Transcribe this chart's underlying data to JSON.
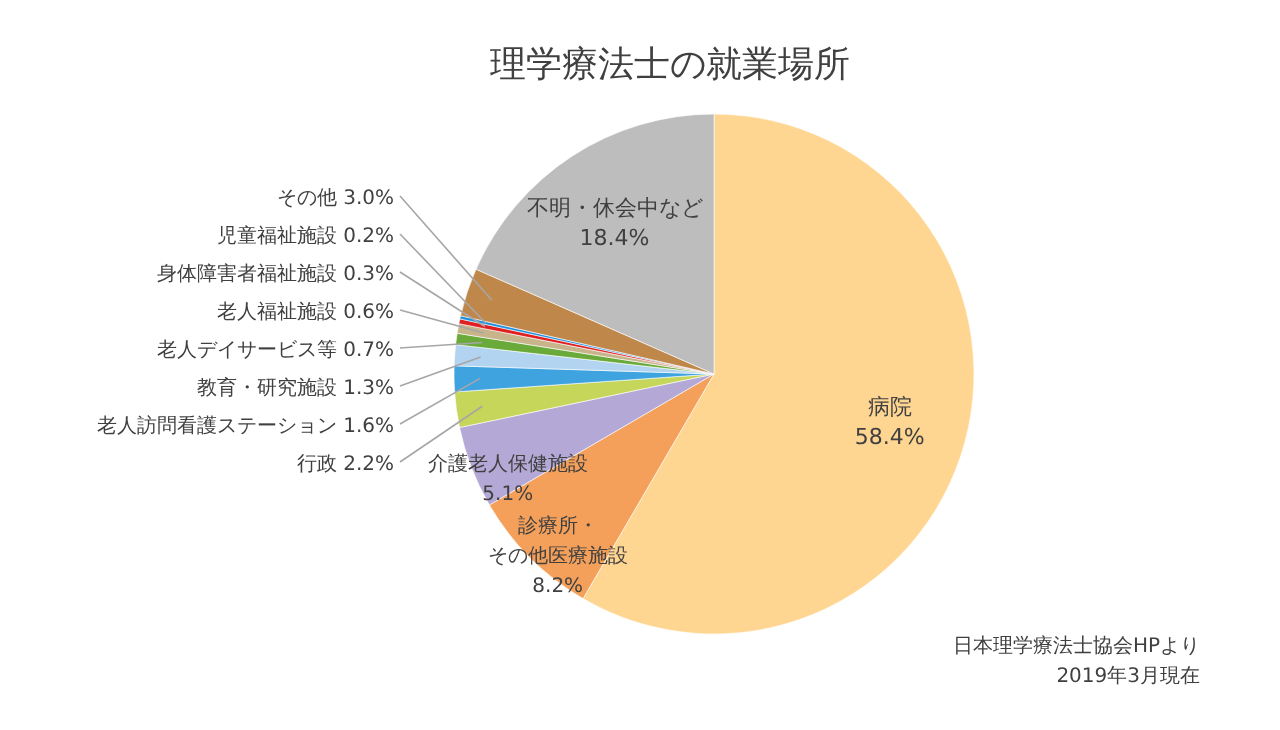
{
  "chart_data": {
    "type": "pie",
    "title": "理学療法士の就業場所",
    "categories": [
      "病院",
      "診療所・その他医療施設",
      "介護老人保健施設",
      "行政",
      "老人訪問看護ステーション",
      "教育・研究施設",
      "老人デイサービス等",
      "老人福祉施設",
      "身体障害者福祉施設",
      "児童福祉施設",
      "その他",
      "不明・休会中など"
    ],
    "values": [
      58.4,
      8.2,
      5.1,
      2.2,
      1.6,
      1.3,
      0.7,
      0.6,
      0.3,
      0.2,
      3.0,
      18.4
    ],
    "colors": [
      "#ffd691",
      "#f5a05a",
      "#b4a8d6",
      "#c5d65a",
      "#3fa3e0",
      "#b3d4f0",
      "#6aaa3a",
      "#c8b48a",
      "#e02020",
      "#1e90e0",
      "#c0874a",
      "#bdbdbd"
    ],
    "value_labels": [
      "58.4%",
      "8.2%",
      "5.1%",
      "2.2%",
      "1.6%",
      "1.3%",
      "0.7%",
      "0.6%",
      "0.3%",
      "0.2%",
      "3.0%",
      "18.4%"
    ],
    "legend": false,
    "annotations": [
      "日本理学療法士協会HPより",
      "2019年3月現在"
    ]
  }
}
